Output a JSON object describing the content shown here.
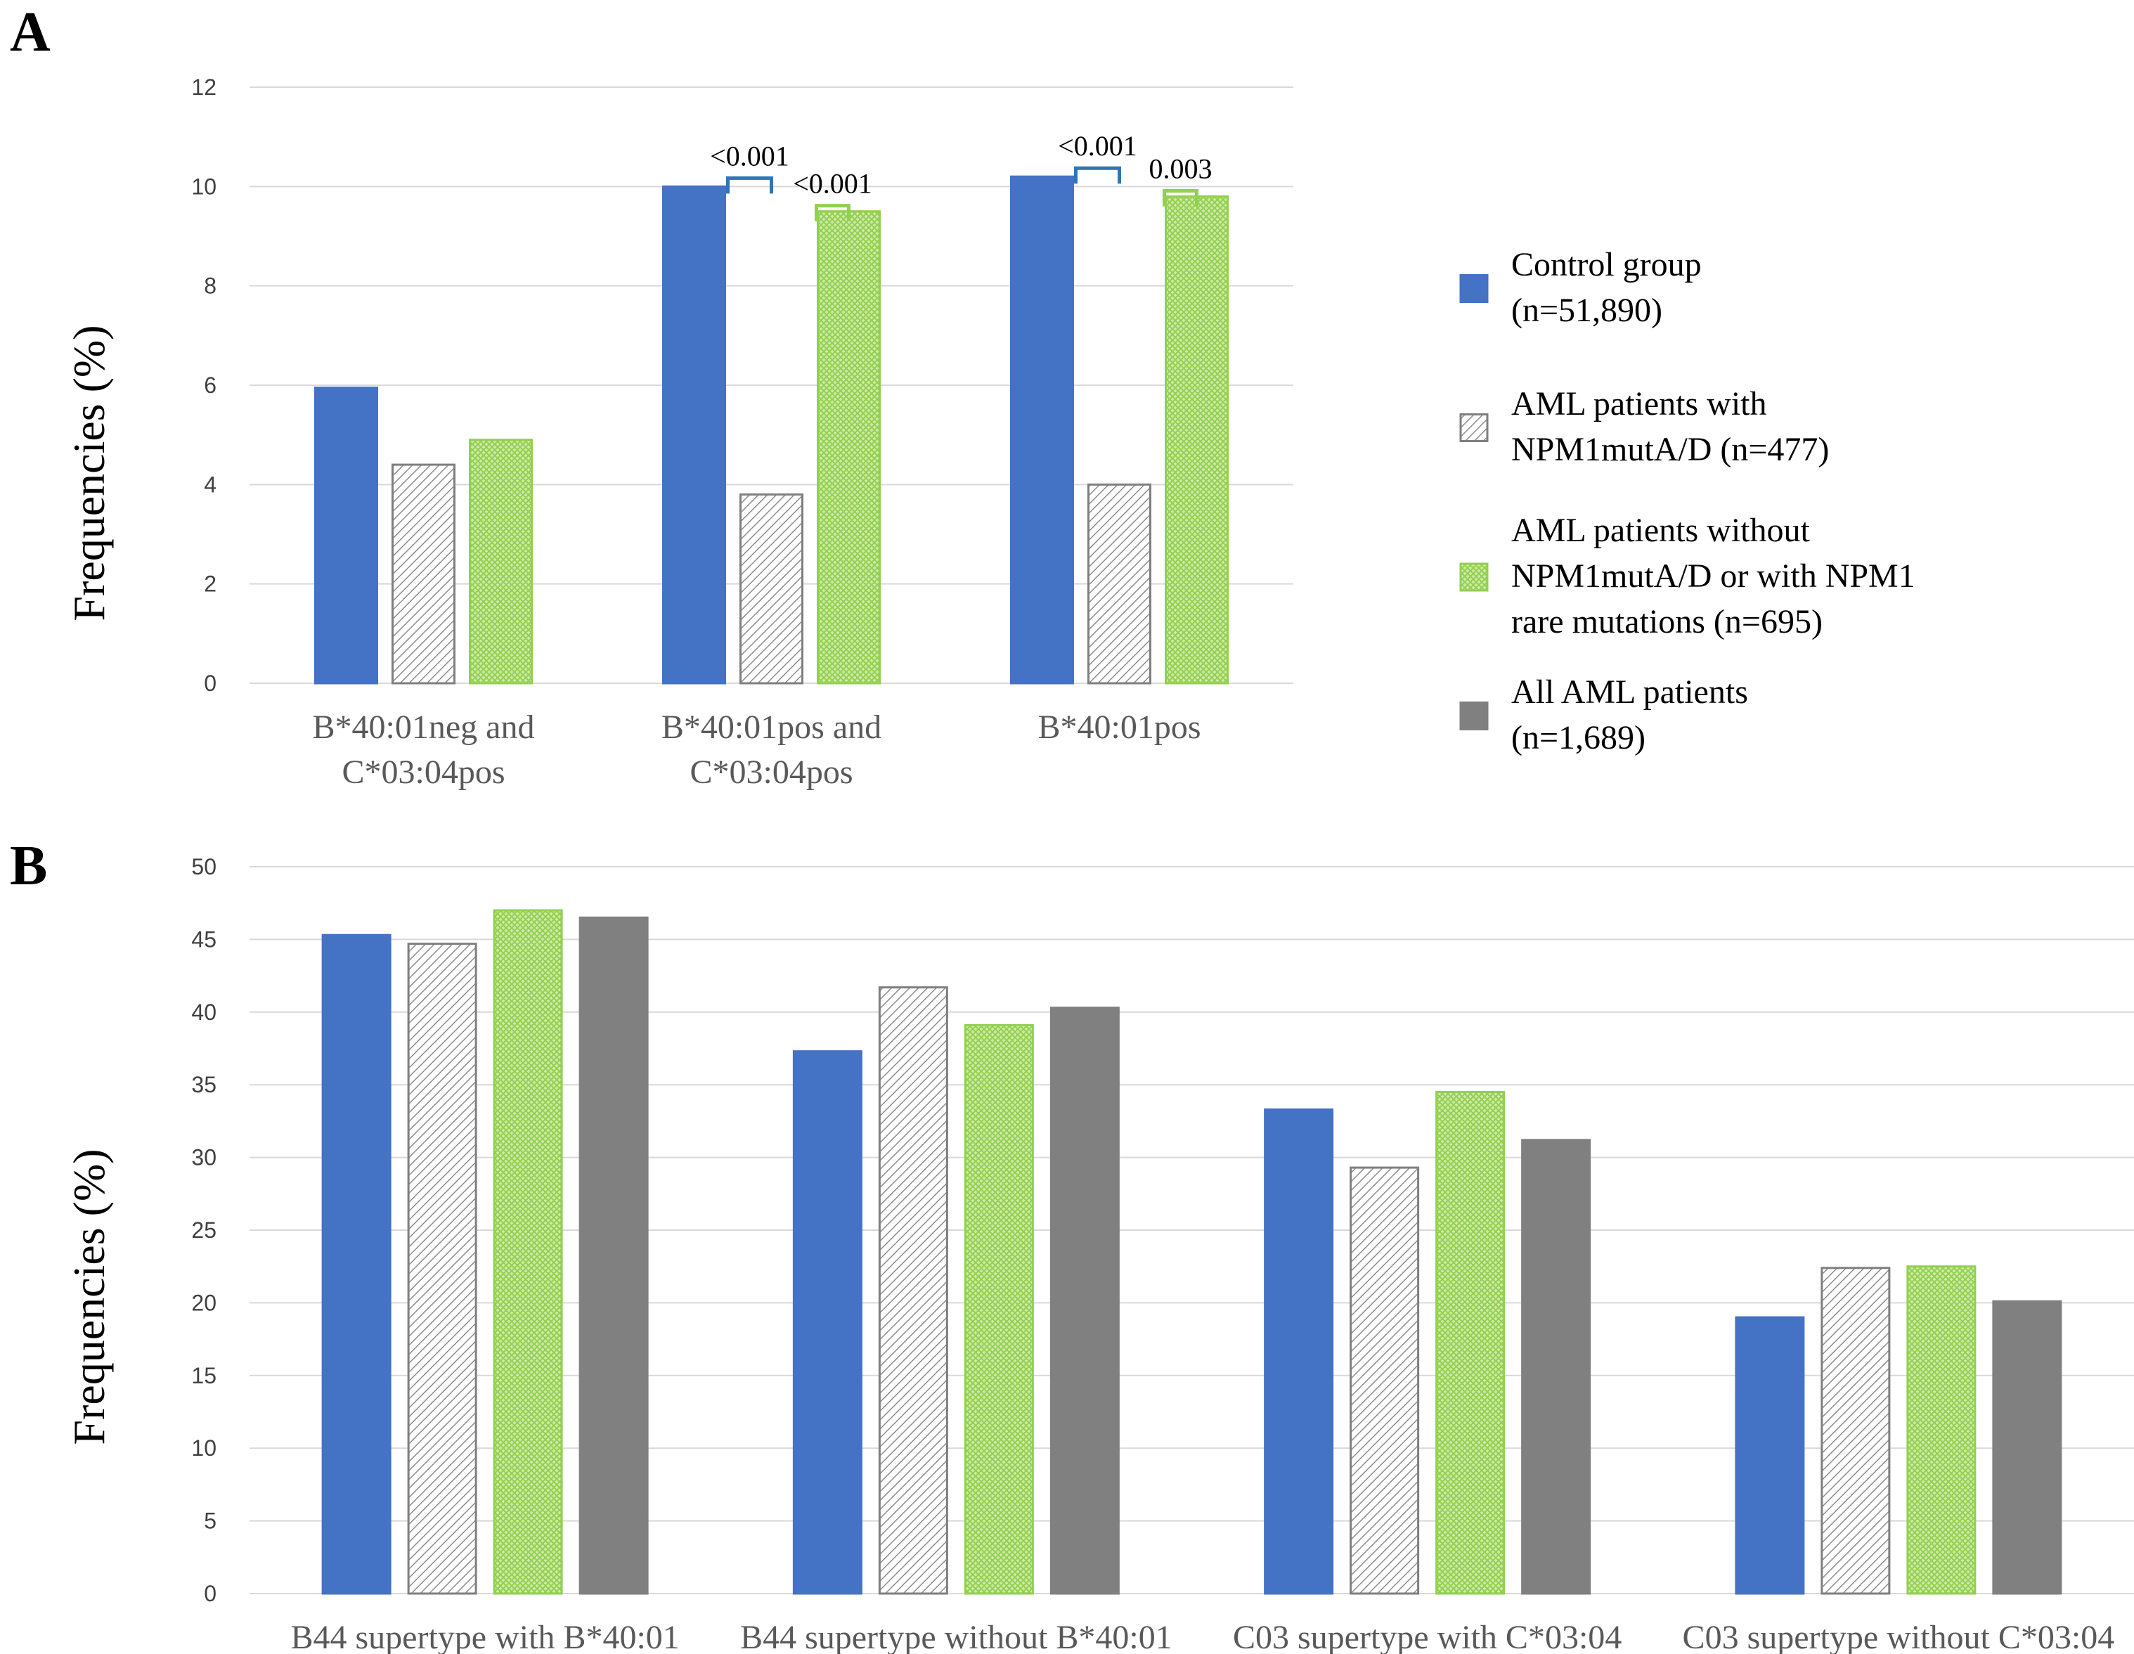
{
  "colors": {
    "control": "#4472c4",
    "npm1_hatch": "#7f7f7f",
    "green": "#92d050",
    "all_aml": "#808080",
    "bracket_blue": "#2e75b6"
  },
  "legend": [
    {
      "key": "control",
      "lines": [
        "Control group",
        "(n=51,890)"
      ],
      "pattern": "solid-blue"
    },
    {
      "key": "npm1",
      "lines": [
        "AML patients with",
        "NPM1mutA/D (n=477)"
      ],
      "pattern": "hatch-gray"
    },
    {
      "key": "without",
      "lines": [
        "AML patients without",
        "NPM1mutA/D or with NPM1",
        "rare mutations (n=695)"
      ],
      "pattern": "cross-green"
    },
    {
      "key": "all",
      "lines": [
        "All AML patients",
        "(n=1,689)"
      ],
      "pattern": "solid-gray"
    }
  ],
  "chart_data": [
    {
      "panel": "A",
      "type": "bar",
      "ylabel": "Frequencies (%)",
      "ylim": [
        0,
        12
      ],
      "yticks": [
        0,
        2,
        4,
        6,
        8,
        10,
        12
      ],
      "grid": true,
      "categories": [
        [
          "B*40:01neg and",
          "C*03:04pos"
        ],
        [
          "B*40:01pos and",
          "C*03:04pos"
        ],
        [
          "B*40:01pos"
        ]
      ],
      "series": [
        {
          "name": "Control group (n=51,890)",
          "key": "control",
          "values": [
            5.95,
            10.0,
            10.2
          ]
        },
        {
          "name": "AML patients with NPM1mutA/D (n=477)",
          "key": "npm1",
          "values": [
            4.4,
            3.8,
            4.0
          ]
        },
        {
          "name": "AML patients without NPM1mutA/D or with NPM1 rare mutations (n=695)",
          "key": "without",
          "values": [
            4.9,
            9.5,
            9.8
          ]
        }
      ],
      "annotations": [
        {
          "category": 1,
          "from": "control",
          "to": "npm1",
          "text": "<0.001",
          "color": "bracket_blue"
        },
        {
          "category": 1,
          "from": "npm1",
          "to": "without",
          "text": "<0.001",
          "color": "green"
        },
        {
          "category": 2,
          "from": "control",
          "to": "npm1",
          "text": "<0.001",
          "color": "bracket_blue"
        },
        {
          "category": 2,
          "from": "npm1",
          "to": "without",
          "text": "0.003",
          "color": "green"
        }
      ]
    },
    {
      "panel": "B",
      "type": "bar",
      "ylabel": "Frequencies (%)",
      "ylim": [
        0,
        50
      ],
      "yticks": [
        0,
        5,
        10,
        15,
        20,
        25,
        30,
        35,
        40,
        45,
        50
      ],
      "grid": true,
      "categories": [
        [
          "B44 supertype with B*40:01"
        ],
        [
          "B44 supertype without B*40:01"
        ],
        [
          "C03 supertype with C*03:04"
        ],
        [
          "C03 supertype without C*03:04"
        ]
      ],
      "series": [
        {
          "name": "Control group (n=51,890)",
          "key": "control",
          "values": [
            45.3,
            37.3,
            33.3,
            19.0
          ]
        },
        {
          "name": "AML patients with NPM1mutA/D (n=477)",
          "key": "npm1",
          "values": [
            44.7,
            41.7,
            29.3,
            22.4
          ]
        },
        {
          "name": "AML patients without NPM1mutA/D or with NPM1 rare mutations (n=695)",
          "key": "without",
          "values": [
            47.0,
            39.1,
            34.5,
            22.5
          ]
        },
        {
          "name": "All AML patients (n=1,689)",
          "key": "all",
          "values": [
            46.5,
            40.3,
            31.2,
            20.1
          ]
        }
      ]
    }
  ]
}
